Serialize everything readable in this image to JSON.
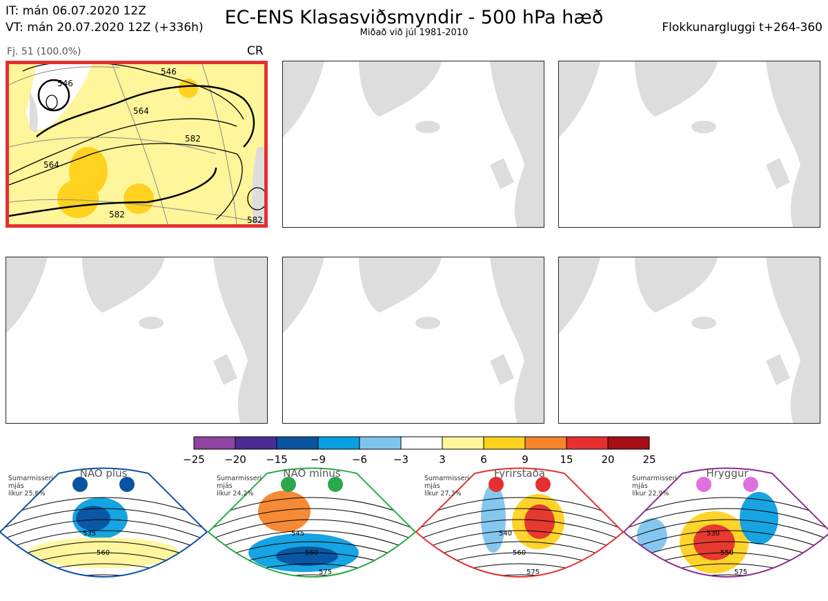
{
  "header": {
    "it": "IT: mán 06.07.2020 12Z",
    "vt": "VT: mán 20.07.2020 12Z  (+336h)",
    "title": "EC-ENS Klasasviðsmyndir - 500 hPa hæð",
    "subtitle": "Miðað við júl 1981-2010",
    "window": "Flokkunargluggi t+264-360"
  },
  "panels": [
    {
      "label": "Fj. 51 (100.0%)",
      "code": "CR",
      "selected": true,
      "contour_labels": [
        "546",
        "546",
        "564",
        "582",
        "564",
        "582",
        "582"
      ]
    },
    {
      "label": "",
      "code": "",
      "selected": false
    },
    {
      "label": "",
      "code": "",
      "selected": false
    },
    {
      "label": "",
      "code": "",
      "selected": false
    },
    {
      "label": "",
      "code": "",
      "selected": false
    },
    {
      "label": "",
      "code": "",
      "selected": false
    }
  ],
  "chart_data": {
    "type": "heatmap",
    "title": "EC-ENS Klasasviðsmyndir - 500 hPa hæð",
    "colorbar": {
      "ticks": [
        "−25",
        "−20",
        "−15",
        "−9",
        "−6",
        "−3",
        "3",
        "6",
        "9",
        "15",
        "20",
        "25"
      ],
      "colors": [
        "#8e44a0",
        "#4a2c94",
        "#0a53a0",
        "#0a9fe0",
        "#7fc4ee",
        "#ffffff",
        "#fff59a",
        "#ffd21f",
        "#f5842a",
        "#e53030",
        "#a50f15"
      ]
    },
    "patterns": [
      {
        "name": "NAO plús",
        "note": "Sumarmisseri\nmjás\nlíkur 25,6%",
        "probability": 25.6,
        "frame": "#0a53a0",
        "dots": [
          "#0a53a0",
          "#0a53a0"
        ],
        "contours": [
          "535",
          "560"
        ]
      },
      {
        "name": "NAO mínus",
        "note": "Sumarmisseri\nmjás\nlíkur 24,2%",
        "probability": 24.2,
        "frame": "#2aa84a",
        "dots": [
          "#2aa84a",
          "#2aa84a"
        ],
        "contours": [
          "545",
          "560",
          "575"
        ]
      },
      {
        "name": "Fyrirstaða",
        "note": "Sumarmisseri\nmjás\nlíkur 27,3%",
        "probability": 27.3,
        "frame": "#e53030",
        "dots": [
          "#e53030",
          "#e53030"
        ],
        "contours": [
          "540",
          "560",
          "575"
        ]
      },
      {
        "name": "Hryggur",
        "note": "Sumarmisseri\nmjás\nlíkur 22,9%",
        "probability": 22.9,
        "frame": "#8e2c8e",
        "dots": [
          "#e070e0",
          "#e070e0"
        ],
        "contours": [
          "530",
          "550",
          "575"
        ]
      }
    ]
  }
}
